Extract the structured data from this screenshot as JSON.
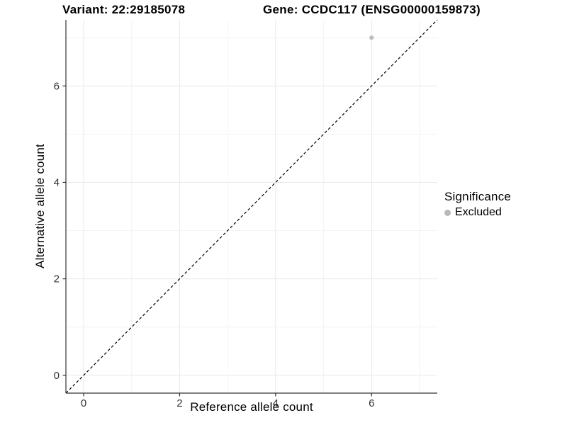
{
  "chart_data": {
    "type": "scatter",
    "titles": {
      "variant": "Variant: 22:29185078",
      "gene": "Gene: CCDC117 (ENSG00000159873)"
    },
    "xlabel": "Reference allele count",
    "ylabel": "Alternative allele count",
    "xlim": [
      -0.37,
      7.37
    ],
    "ylim": [
      -0.37,
      7.37
    ],
    "x_major_ticks": [
      0,
      2,
      4,
      6
    ],
    "y_major_ticks": [
      0,
      2,
      4,
      6
    ],
    "x_minor_gridlines": [
      1,
      3,
      5,
      7
    ],
    "y_minor_gridlines": [
      1,
      3,
      5,
      7
    ],
    "grid": true,
    "identity_line": {
      "style": "dashed",
      "color": "#000000"
    },
    "points": [
      {
        "x": 6,
        "y": 7,
        "series": "Excluded"
      }
    ],
    "legend": {
      "title": "Significance",
      "position": "right",
      "entries": [
        {
          "label": "Excluded",
          "color": "#b9b9b9"
        }
      ]
    }
  },
  "colors": {
    "background": "#ffffff",
    "grid_major": "#e9e9e9",
    "grid_minor": "#f4f4f4",
    "axis_line": "#333333",
    "tick_mark": "#333333",
    "tick_label": "#333333",
    "point": "#bdbdbd",
    "identity_line": "#000000"
  }
}
